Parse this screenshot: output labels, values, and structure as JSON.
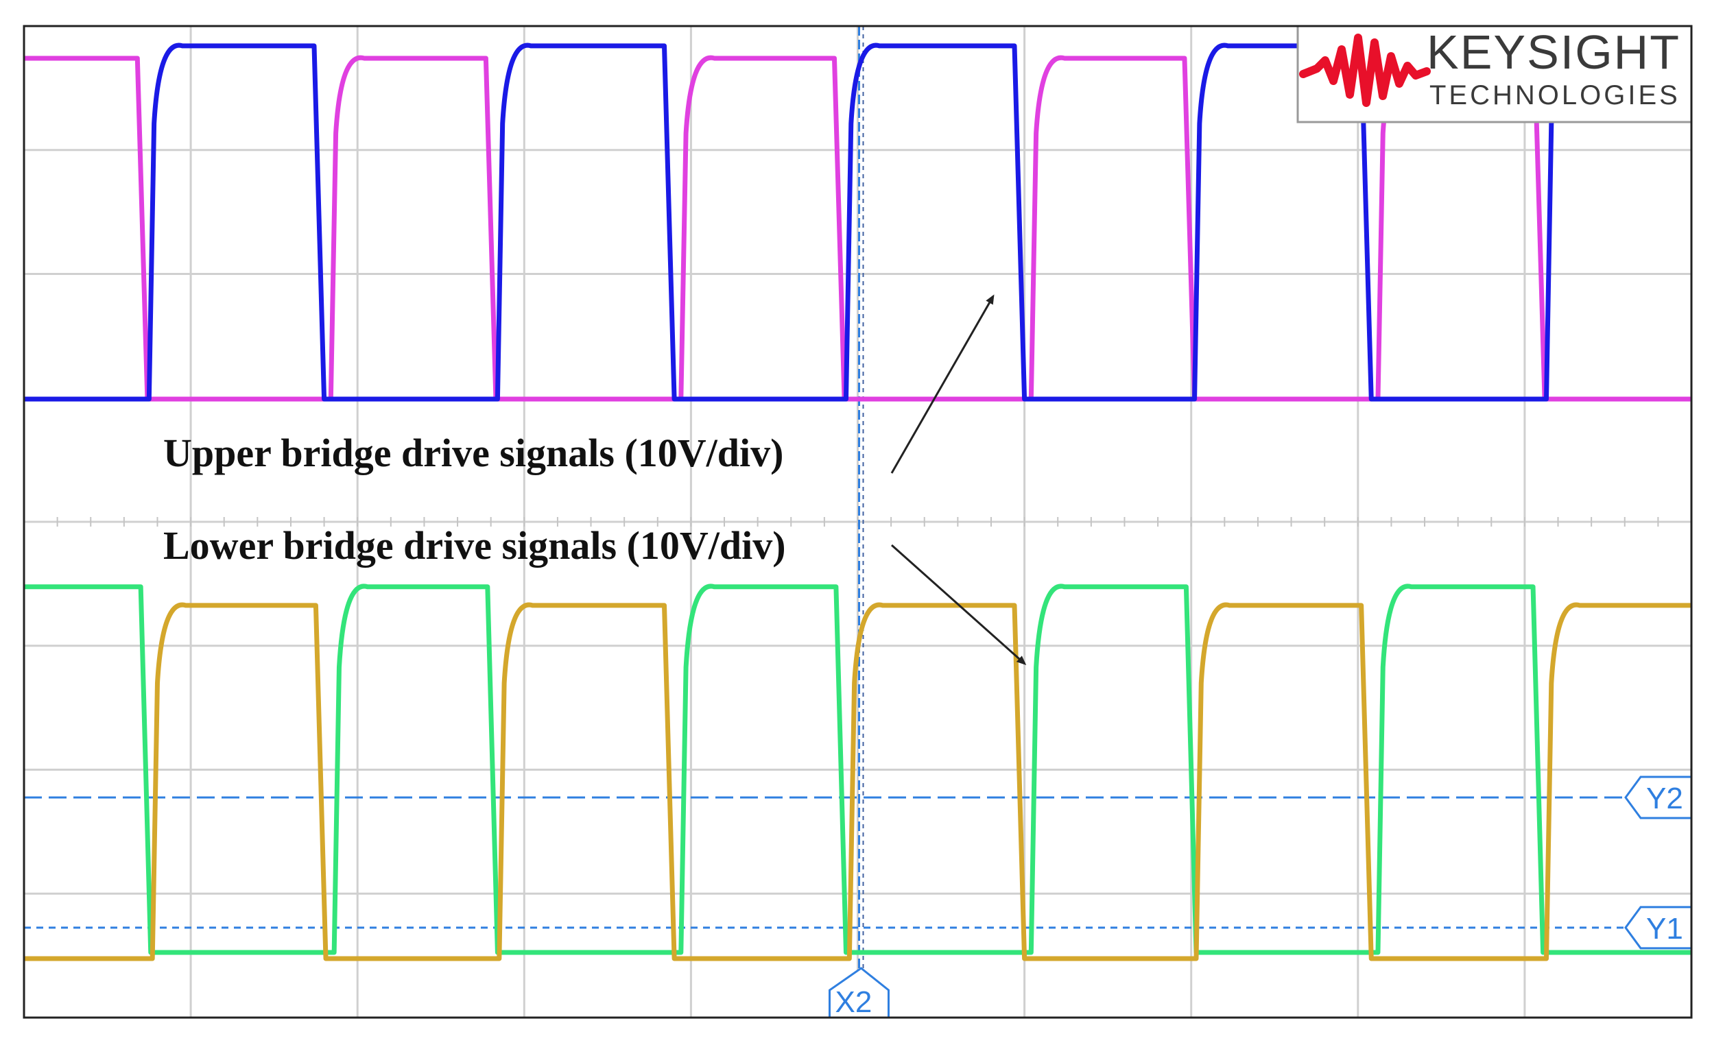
{
  "chart_data": {
    "type": "line",
    "title": "",
    "xlabel": "",
    "ylabel": "",
    "grid": true,
    "divisions": {
      "x": 10,
      "y": 8
    },
    "pwm_period_div": 2.1,
    "rise_time_div": 0.2,
    "fall_time_div": 0.06,
    "upper_panel": {
      "label": "Upper bridge drive signals (10V/div)",
      "scale": "10V/div",
      "series": [
        {
          "color": "#e040e0",
          "low_div": 0.0,
          "high_div": 2.75,
          "edges_div": [
            0.68,
            1.84,
            2.77,
            3.94,
            4.86,
            6.04,
            6.96,
            8.12,
            9.06
          ]
        },
        {
          "color": "#1a1ae6",
          "low_div": 0.0,
          "high_div": 2.85,
          "edges_div": [
            0.75,
            1.74,
            2.84,
            3.84,
            4.93,
            5.94,
            7.02,
            8.02,
            9.13
          ]
        }
      ]
    },
    "lower_panel": {
      "label": "Lower bridge drive signals (10V/div)",
      "scale": "10V/div",
      "series": [
        {
          "color": "#33e47a",
          "low_div": 0.05,
          "high_div": 3.0,
          "edges_div": [
            0.7,
            1.86,
            2.78,
            3.94,
            4.87,
            6.04,
            6.97,
            8.12,
            9.05
          ]
        },
        {
          "color": "#d4a72c",
          "low_div": 0.0,
          "high_div": 2.85,
          "edges_div": [
            0.77,
            1.75,
            2.85,
            3.84,
            4.95,
            5.94,
            7.03,
            8.02,
            9.13
          ]
        }
      ]
    },
    "cursors": {
      "x": [
        {
          "label": "X2",
          "at_div": 5.0
        }
      ],
      "y": [
        {
          "label": "Y2",
          "level_div": 1.3
        },
        {
          "label": "Y1",
          "level_div": 0.25
        }
      ]
    },
    "colors": {
      "cursor": "#2f7fe0",
      "grid": "#d0d0d0",
      "frame": "#222222",
      "arrow": "#222222"
    }
  },
  "logo": {
    "brand": "KEYSIGHT",
    "sub": "TECHNOLOGIES",
    "color": "#e8102a"
  }
}
